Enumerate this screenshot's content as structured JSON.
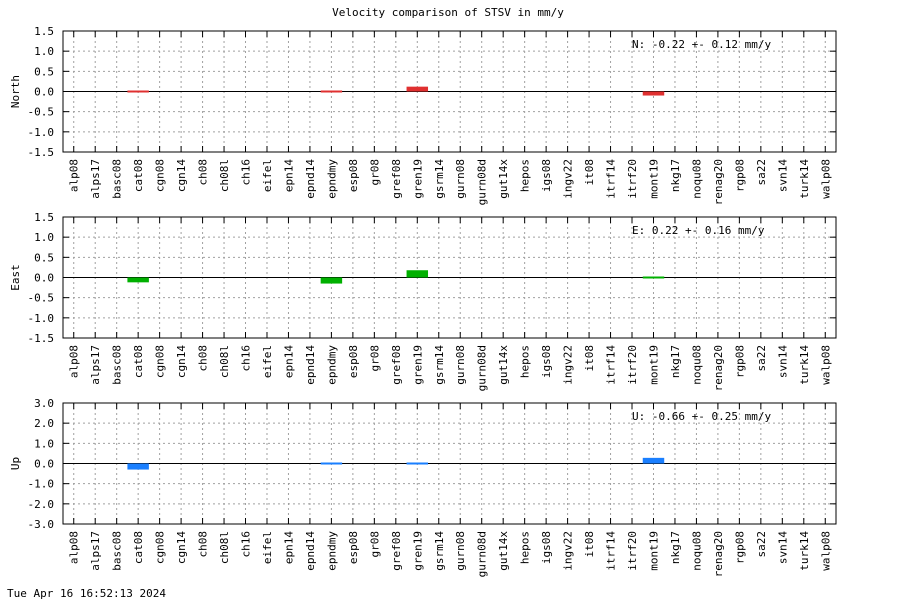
{
  "title": "Velocity comparison of STSV in mm/y",
  "timestamp": "Tue Apr 16 16:52:13 2024",
  "chart_data": [
    {
      "type": "bar",
      "ylabel": "North",
      "annotation": "N:  -0.22 +-  0.12 mm/y",
      "color": "#e03030",
      "ylim": [
        -1.5,
        1.5
      ],
      "yticks": [
        1.5,
        1.0,
        0.5,
        0.0,
        -0.5,
        -1.0,
        -1.5
      ],
      "ytick_labels": [
        "1.5",
        "1.0",
        "0.5",
        "0.0",
        "-0.5",
        "-1.0",
        "-1.5"
      ],
      "grid": true,
      "categories": [
        "alp08",
        "alps17",
        "basc08",
        "cat08",
        "cgn08",
        "cgn14",
        "ch08",
        "ch08l",
        "ch16",
        "eifel",
        "epn14",
        "epnd14",
        "epndmy",
        "esp08",
        "gr08",
        "gref08",
        "gren19",
        "gsrm14",
        "gurn08",
        "gurn08d",
        "gut14x",
        "hepos",
        "igs08",
        "ingv22",
        "it08",
        "itrf14",
        "itrf20",
        "mont19",
        "nkg17",
        "noqu08",
        "renag20",
        "rgp08",
        "sa22",
        "svn14",
        "turk14",
        "walp08"
      ],
      "values": [
        null,
        null,
        null,
        -0.03,
        null,
        null,
        null,
        null,
        null,
        null,
        null,
        null,
        -0.02,
        null,
        null,
        null,
        0.12,
        null,
        null,
        null,
        null,
        null,
        null,
        null,
        null,
        null,
        null,
        -0.1,
        null,
        null,
        null,
        null,
        null,
        null,
        null,
        null
      ]
    },
    {
      "type": "bar",
      "ylabel": "East",
      "annotation": "E:   0.22 +-  0.16 mm/y",
      "color": "#00b000",
      "ylim": [
        -1.5,
        1.5
      ],
      "yticks": [
        1.5,
        1.0,
        0.5,
        0.0,
        -0.5,
        -1.0,
        -1.5
      ],
      "ytick_labels": [
        "1.5",
        "1.0",
        "0.5",
        "0.0",
        "-0.5",
        "-1.0",
        "-1.5"
      ],
      "grid": true,
      "categories": [
        "alp08",
        "alps17",
        "basc08",
        "cat08",
        "cgn08",
        "cgn14",
        "ch08",
        "ch08l",
        "ch16",
        "eifel",
        "epn14",
        "epnd14",
        "epndmy",
        "esp08",
        "gr08",
        "gref08",
        "gren19",
        "gsrm14",
        "gurn08",
        "gurn08d",
        "gut14x",
        "hepos",
        "igs08",
        "ingv22",
        "it08",
        "itrf14",
        "itrf20",
        "mont19",
        "nkg17",
        "noqu08",
        "renag20",
        "rgp08",
        "sa22",
        "svn14",
        "turk14",
        "walp08"
      ],
      "values": [
        null,
        null,
        null,
        -0.12,
        null,
        null,
        null,
        null,
        null,
        null,
        null,
        null,
        -0.15,
        null,
        null,
        null,
        0.18,
        null,
        null,
        null,
        null,
        null,
        null,
        null,
        null,
        null,
        null,
        0.04,
        null,
        null,
        null,
        null,
        null,
        null,
        null,
        null
      ]
    },
    {
      "type": "bar",
      "ylabel": "Up",
      "annotation": "U:  -0.66 +-  0.25 mm/y",
      "color": "#1a7fff",
      "ylim": [
        -3.0,
        3.0
      ],
      "yticks": [
        3.0,
        2.0,
        1.0,
        0.0,
        -1.0,
        -2.0,
        -3.0
      ],
      "ytick_labels": [
        "3.0",
        "2.0",
        "1.0",
        "0.0",
        "-1.0",
        "-2.0",
        "-3.0"
      ],
      "grid": true,
      "categories": [
        "alp08",
        "alps17",
        "basc08",
        "cat08",
        "cgn08",
        "cgn14",
        "ch08",
        "ch08l",
        "ch16",
        "eifel",
        "epn14",
        "epnd14",
        "epndmy",
        "esp08",
        "gr08",
        "gref08",
        "gren19",
        "gsrm14",
        "gurn08",
        "gurn08d",
        "gut14x",
        "hepos",
        "igs08",
        "ingv22",
        "it08",
        "itrf14",
        "itrf20",
        "mont19",
        "nkg17",
        "noqu08",
        "renag20",
        "rgp08",
        "sa22",
        "svn14",
        "turk14",
        "walp08"
      ],
      "values": [
        null,
        null,
        null,
        -0.3,
        null,
        null,
        null,
        null,
        null,
        null,
        null,
        null,
        0.04,
        null,
        null,
        null,
        -0.06,
        null,
        null,
        null,
        null,
        null,
        null,
        null,
        null,
        null,
        null,
        0.28,
        null,
        null,
        null,
        null,
        null,
        null,
        null,
        null
      ]
    }
  ]
}
